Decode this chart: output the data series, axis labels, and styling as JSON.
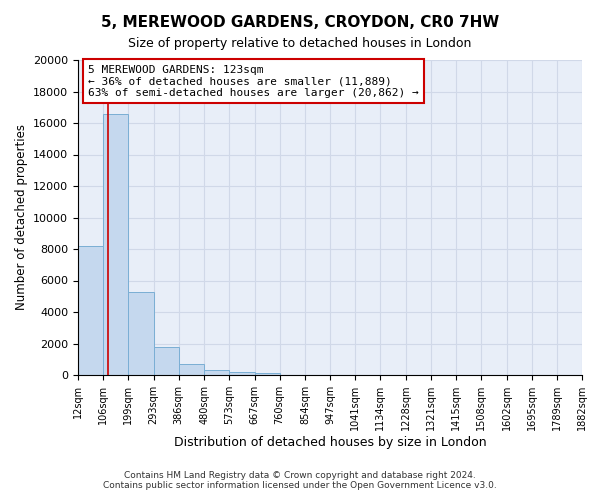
{
  "title": "5, MEREWOOD GARDENS, CROYDON, CR0 7HW",
  "subtitle": "Size of property relative to detached houses in London",
  "xlabel": "Distribution of detached houses by size in London",
  "ylabel": "Number of detached properties",
  "bins": [
    12,
    106,
    199,
    293,
    386,
    480,
    573,
    667,
    760,
    854,
    947,
    1041,
    1134,
    1228,
    1321,
    1415,
    1508,
    1602,
    1695,
    1789,
    1882
  ],
  "bar_heights": [
    8200,
    16600,
    5300,
    1800,
    700,
    300,
    200,
    150,
    0,
    0,
    0,
    0,
    0,
    0,
    0,
    0,
    0,
    0,
    0,
    0
  ],
  "bar_color": "#c5d8ee",
  "bar_edge_color": "#7aaed4",
  "property_size": 123,
  "red_line_color": "#cc0000",
  "annotation_line1": "5 MEREWOOD GARDENS: 123sqm",
  "annotation_line2": "← 36% of detached houses are smaller (11,889)",
  "annotation_line3": "63% of semi-detached houses are larger (20,862) →",
  "annotation_box_edgecolor": "#cc0000",
  "ylim": [
    0,
    20000
  ],
  "yticks": [
    0,
    2000,
    4000,
    6000,
    8000,
    10000,
    12000,
    14000,
    16000,
    18000,
    20000
  ],
  "grid_color": "#d0d8e8",
  "background_color": "#e8eef8",
  "footer_line1": "Contains HM Land Registry data © Crown copyright and database right 2024.",
  "footer_line2": "Contains public sector information licensed under the Open Government Licence v3.0."
}
